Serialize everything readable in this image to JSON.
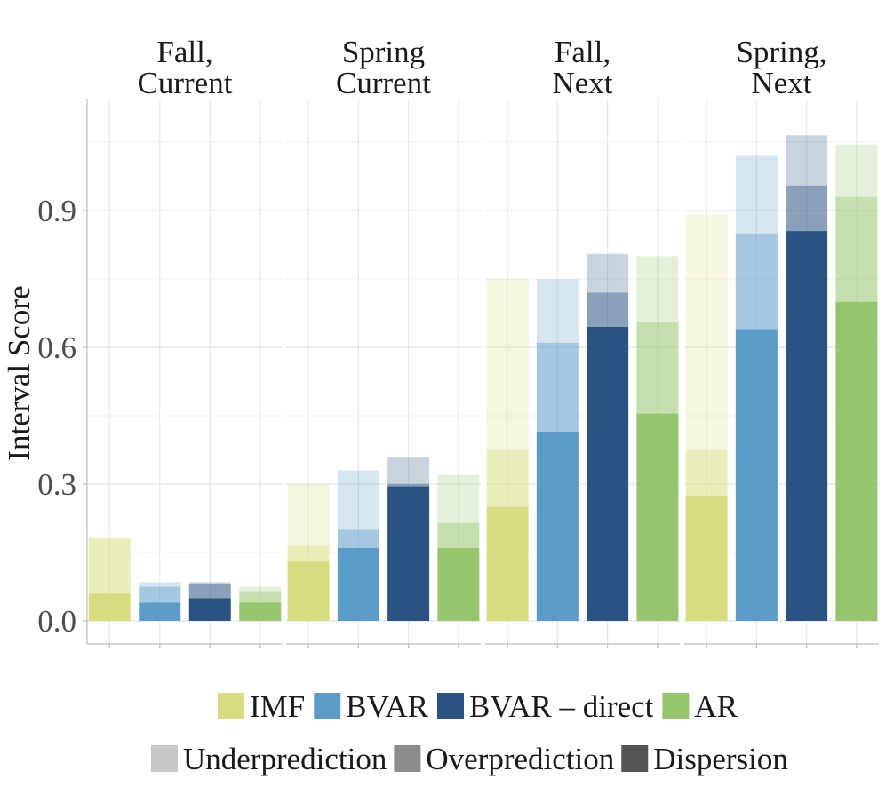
{
  "chart_data": {
    "type": "bar",
    "stacked": true,
    "ylabel": "Interval Score",
    "xlabel": "",
    "ylim": [
      -0.04,
      1.1
    ],
    "yticks": [
      0.0,
      0.3,
      0.6,
      0.9
    ],
    "ytick_labels": [
      "0.0",
      "0.3",
      "0.6",
      "0.9"
    ],
    "facets": [
      {
        "title_lines": [
          "Fall,",
          "Current"
        ],
        "bars": [
          {
            "model": "IMF",
            "dispersion": 0.06,
            "overprediction": 0.12,
            "underprediction": 0.005
          },
          {
            "model": "BVAR",
            "dispersion": 0.04,
            "overprediction": 0.035,
            "underprediction": 0.01
          },
          {
            "model": "BVAR – direct",
            "dispersion": 0.05,
            "overprediction": 0.03,
            "underprediction": 0.005
          },
          {
            "model": "AR",
            "dispersion": 0.04,
            "overprediction": 0.025,
            "underprediction": 0.01
          }
        ]
      },
      {
        "title_lines": [
          "Spring",
          "Current"
        ],
        "bars": [
          {
            "model": "IMF",
            "dispersion": 0.13,
            "overprediction": 0.035,
            "underprediction": 0.135
          },
          {
            "model": "BVAR",
            "dispersion": 0.16,
            "overprediction": 0.04,
            "underprediction": 0.13
          },
          {
            "model": "BVAR – direct",
            "dispersion": 0.295,
            "overprediction": 0.005,
            "underprediction": 0.06
          },
          {
            "model": "AR",
            "dispersion": 0.16,
            "overprediction": 0.055,
            "underprediction": 0.105
          }
        ]
      },
      {
        "title_lines": [
          "Fall,",
          "Next"
        ],
        "bars": [
          {
            "model": "IMF",
            "dispersion": 0.25,
            "overprediction": 0.125,
            "underprediction": 0.375
          },
          {
            "model": "BVAR",
            "dispersion": 0.415,
            "overprediction": 0.195,
            "underprediction": 0.14
          },
          {
            "model": "BVAR – direct",
            "dispersion": 0.645,
            "overprediction": 0.075,
            "underprediction": 0.085
          },
          {
            "model": "AR",
            "dispersion": 0.455,
            "overprediction": 0.2,
            "underprediction": 0.145
          }
        ]
      },
      {
        "title_lines": [
          "Spring,",
          "Next"
        ],
        "bars": [
          {
            "model": "IMF",
            "dispersion": 0.275,
            "overprediction": 0.1,
            "underprediction": 0.515
          },
          {
            "model": "BVAR",
            "dispersion": 0.64,
            "overprediction": 0.21,
            "underprediction": 0.17
          },
          {
            "model": "BVAR – direct",
            "dispersion": 0.855,
            "overprediction": 0.1,
            "underprediction": 0.11
          },
          {
            "model": "AR",
            "dispersion": 0.7,
            "overprediction": 0.23,
            "underprediction": 0.115
          }
        ]
      }
    ],
    "components": [
      "dispersion",
      "overprediction",
      "underprediction"
    ],
    "component_opacity": {
      "dispersion": 1.0,
      "overprediction": 0.55,
      "underprediction": 0.25
    },
    "legend_models": [
      {
        "label": "IMF",
        "color": "#d8dc80"
      },
      {
        "label": "BVAR",
        "color": "#5b9bc8"
      },
      {
        "label": "BVAR – direct",
        "color": "#2a5384"
      },
      {
        "label": "AR",
        "color": "#96c56e"
      }
    ],
    "legend_components": [
      {
        "label": "Underprediction",
        "color": "#c8c8c8"
      },
      {
        "label": "Overprediction",
        "color": "#8c8c8c"
      },
      {
        "label": "Dispersion",
        "color": "#555555"
      }
    ],
    "legend_position": "bottom"
  }
}
